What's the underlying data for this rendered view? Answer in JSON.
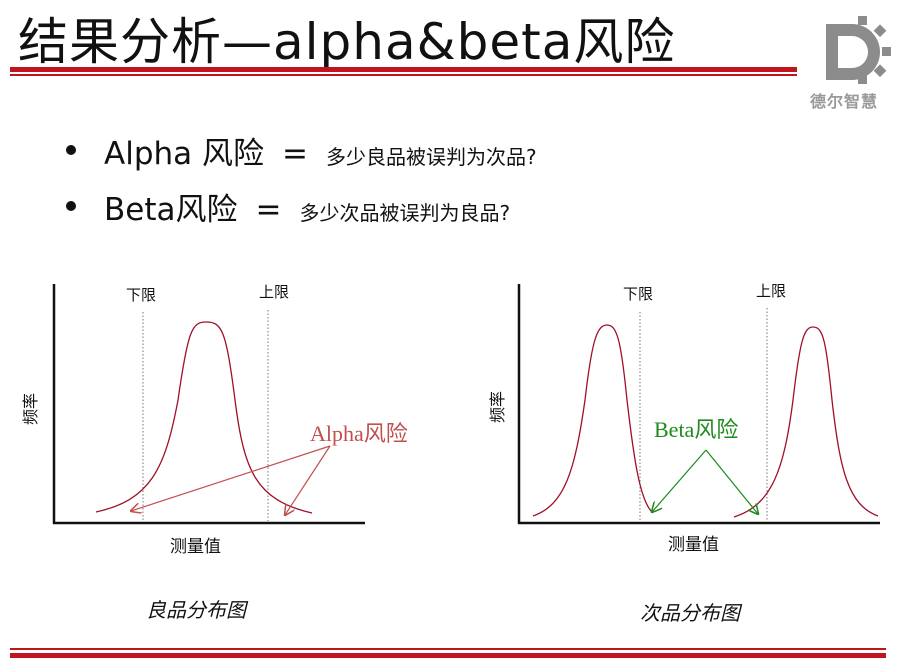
{
  "header": {
    "title": "结果分析—alpha&beta风险",
    "logo_text": "德尔智慧",
    "accent_color": "#c0141e"
  },
  "bullets": [
    {
      "term": "Alpha 风险",
      "eq": "=",
      "question": "多少良品被误判为次品?"
    },
    {
      "term": "Beta风险",
      "eq": "=",
      "question": "多少次品被误判为良品?"
    }
  ],
  "left_diagram": {
    "lower_limit": "下限",
    "upper_limit": "上限",
    "y_label": "频率",
    "x_label": "测量值",
    "risk_label": "Alpha风险",
    "risk_color": "#c0504d",
    "caption": "良品分布图"
  },
  "right_diagram": {
    "lower_limit": "下限",
    "upper_limit": "上限",
    "y_label": "频率",
    "x_label": "测量值",
    "risk_label": "Beta风险",
    "risk_color": "#1e8a1e",
    "caption": "次品分布图"
  },
  "curve_color": "#a0102a"
}
